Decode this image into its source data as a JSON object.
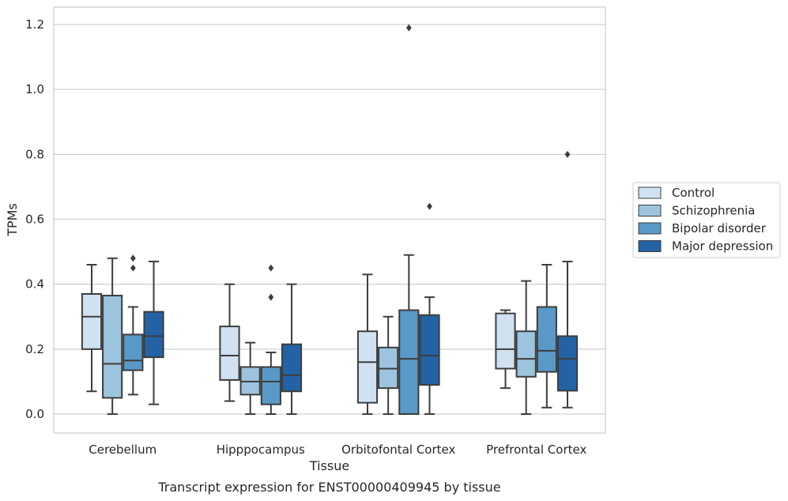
{
  "caption": "Transcript expression for ENST00000409945 by tissue",
  "chart_data": {
    "type": "boxplot",
    "xlabel": "Tissue",
    "ylabel": "TPMs",
    "ylim": [
      -0.055,
      1.25
    ],
    "yticks": [
      "0.0",
      "0.2",
      "0.4",
      "0.6",
      "0.8",
      "1.0",
      "1.2"
    ],
    "ytick_values": [
      0,
      0.2,
      0.4,
      0.6,
      0.8,
      1.0,
      1.2
    ],
    "grid": true,
    "legend_position": "right",
    "categories": [
      "Cerebellum",
      "Hipppocampus",
      "Orbitofontal Cortex",
      "Prefrontal Cortex"
    ],
    "series": [
      {
        "name": "Control",
        "color": "#d0e1f1",
        "boxes": [
          {
            "whislo": 0.07,
            "q1": 0.2,
            "med": 0.3,
            "q3": 0.37,
            "whishi": 0.46,
            "fliers": []
          },
          {
            "whislo": 0.04,
            "q1": 0.105,
            "med": 0.18,
            "q3": 0.27,
            "whishi": 0.4,
            "fliers": []
          },
          {
            "whislo": 0.0,
            "q1": 0.035,
            "med": 0.16,
            "q3": 0.255,
            "whishi": 0.43,
            "fliers": []
          },
          {
            "whislo": 0.08,
            "q1": 0.14,
            "med": 0.2,
            "q3": 0.31,
            "whishi": 0.32,
            "fliers": []
          }
        ]
      },
      {
        "name": "Schizophrenia",
        "color": "#9cc4de",
        "boxes": [
          {
            "whislo": 0.0,
            "q1": 0.05,
            "med": 0.155,
            "q3": 0.365,
            "whishi": 0.48,
            "fliers": []
          },
          {
            "whislo": 0.0,
            "q1": 0.06,
            "med": 0.1,
            "q3": 0.145,
            "whishi": 0.22,
            "fliers": []
          },
          {
            "whislo": 0.0,
            "q1": 0.08,
            "med": 0.14,
            "q3": 0.205,
            "whishi": 0.3,
            "fliers": []
          },
          {
            "whislo": 0.0,
            "q1": 0.115,
            "med": 0.17,
            "q3": 0.255,
            "whishi": 0.41,
            "fliers": []
          }
        ]
      },
      {
        "name": "Bipolar disorder",
        "color": "#5899c8",
        "boxes": [
          {
            "whislo": 0.06,
            "q1": 0.135,
            "med": 0.165,
            "q3": 0.245,
            "whishi": 0.33,
            "fliers": [
              0.45,
              0.48
            ]
          },
          {
            "whislo": 0.0,
            "q1": 0.03,
            "med": 0.1,
            "q3": 0.145,
            "whishi": 0.19,
            "fliers": [
              0.36,
              0.45
            ]
          },
          {
            "whislo": 0.0,
            "q1": 0.0,
            "med": 0.17,
            "q3": 0.32,
            "whishi": 0.49,
            "fliers": [
              1.19
            ]
          },
          {
            "whislo": 0.02,
            "q1": 0.13,
            "med": 0.195,
            "q3": 0.33,
            "whishi": 0.46,
            "fliers": []
          }
        ]
      },
      {
        "name": "Major depression",
        "color": "#2462a6",
        "boxes": [
          {
            "whislo": 0.03,
            "q1": 0.175,
            "med": 0.24,
            "q3": 0.315,
            "whishi": 0.47,
            "fliers": []
          },
          {
            "whislo": 0.0,
            "q1": 0.07,
            "med": 0.12,
            "q3": 0.215,
            "whishi": 0.4,
            "fliers": []
          },
          {
            "whislo": 0.0,
            "q1": 0.09,
            "med": 0.18,
            "q3": 0.305,
            "whishi": 0.36,
            "fliers": [
              0.64
            ]
          },
          {
            "whislo": 0.02,
            "q1": 0.072,
            "med": 0.17,
            "q3": 0.24,
            "whishi": 0.47,
            "fliers": [
              0.8
            ]
          }
        ]
      }
    ]
  }
}
